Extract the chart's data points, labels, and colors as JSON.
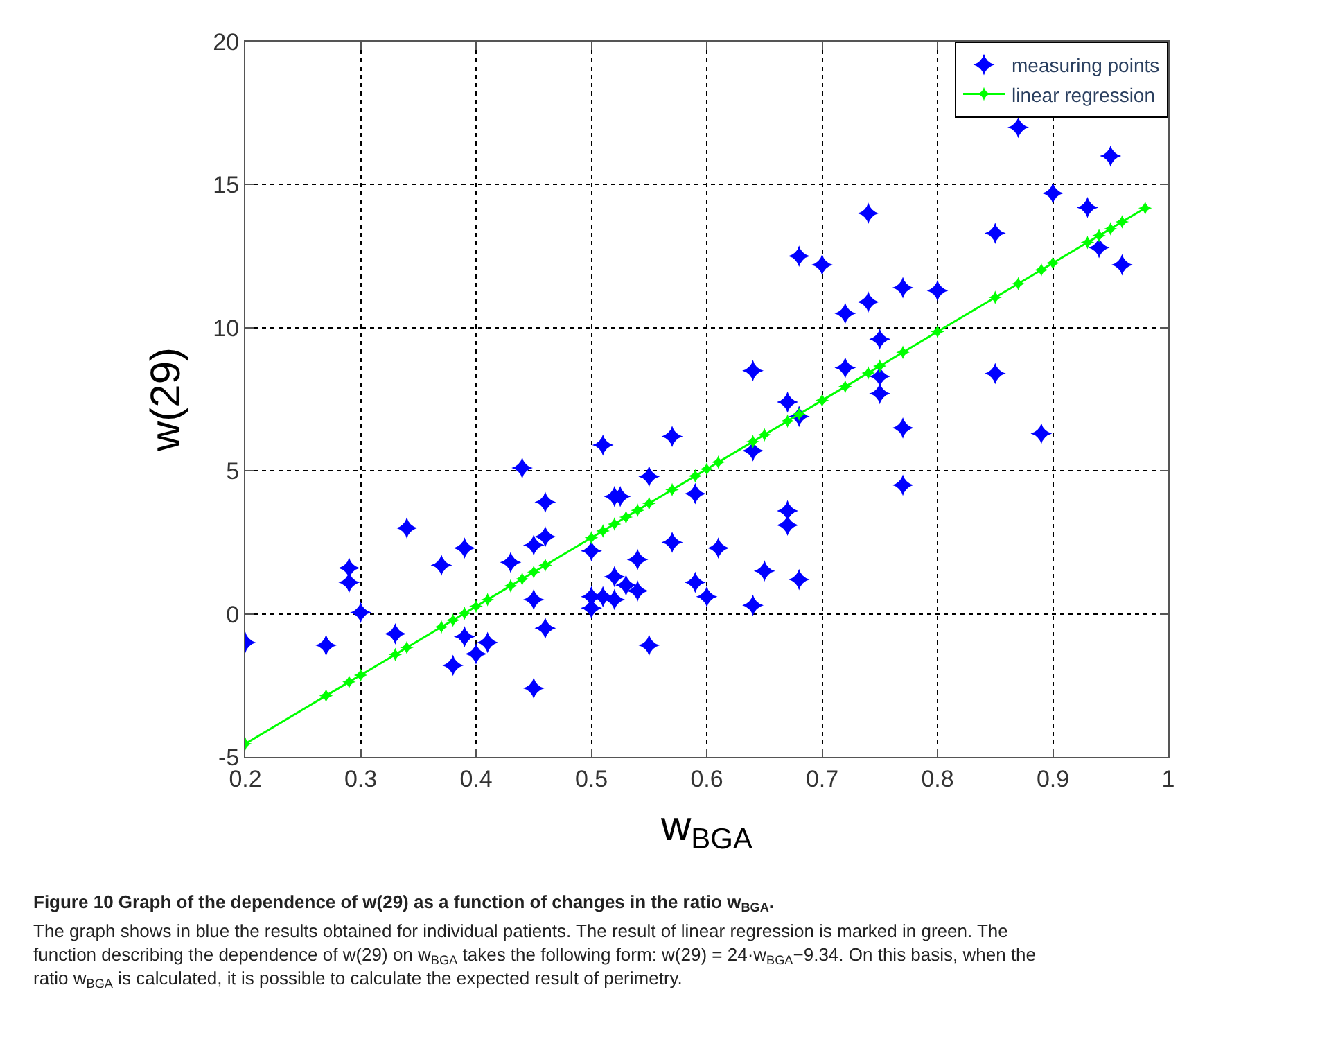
{
  "chart_data": {
    "type": "scatter",
    "xlabel": "w$_{BGA}$",
    "ylabel": "w(29)",
    "xlim": [
      0.2,
      1
    ],
    "xticks": [
      0.2,
      0.3,
      0.4,
      0.5,
      0.6,
      0.7,
      0.8,
      0.9,
      1
    ],
    "ylim": [
      -5,
      20
    ],
    "yticks": [
      -5,
      0,
      5,
      10,
      15,
      20
    ],
    "grid": true,
    "legend": "top right",
    "marker": "star",
    "series": [
      {
        "name": "measuring points",
        "color": "#0000ff",
        "x": [
          0.2,
          0.27,
          0.29,
          0.29,
          0.3,
          0.33,
          0.34,
          0.37,
          0.38,
          0.39,
          0.39,
          0.4,
          0.41,
          0.43,
          0.44,
          0.45,
          0.45,
          0.45,
          0.46,
          0.46,
          0.46,
          0.5,
          0.5,
          0.5,
          0.51,
          0.51,
          0.52,
          0.525,
          0.52,
          0.52,
          0.53,
          0.54,
          0.54,
          0.55,
          0.55,
          0.57,
          0.57,
          0.59,
          0.59,
          0.6,
          0.61,
          0.64,
          0.64,
          0.64,
          0.65,
          0.67,
          0.67,
          0.67,
          0.68,
          0.68,
          0.68,
          0.7,
          0.72,
          0.72,
          0.74,
          0.74,
          0.75,
          0.75,
          0.75,
          0.77,
          0.77,
          0.77,
          0.8,
          0.85,
          0.85,
          0.87,
          0.89,
          0.9,
          0.93,
          0.94,
          0.95,
          0.96
        ],
        "values": [
          -1.0,
          -1.1,
          1.6,
          1.1,
          0.05,
          -0.7,
          3.0,
          1.7,
          -1.8,
          2.3,
          -0.8,
          -1.4,
          -1.0,
          1.8,
          5.1,
          2.4,
          0.5,
          -2.6,
          3.9,
          2.7,
          -0.5,
          2.2,
          0.6,
          0.2,
          5.9,
          0.6,
          4.1,
          4.1,
          0.5,
          1.3,
          1.0,
          0.8,
          1.9,
          4.8,
          -1.1,
          6.2,
          2.5,
          4.2,
          1.1,
          0.6,
          2.3,
          8.5,
          5.7,
          0.3,
          1.5,
          7.4,
          3.6,
          3.1,
          6.9,
          1.2,
          12.5,
          12.2,
          10.5,
          8.6,
          14.0,
          10.9,
          9.6,
          8.3,
          7.7,
          11.4,
          6.5,
          4.5,
          11.3,
          13.3,
          8.4,
          17.0,
          6.3,
          14.7,
          14.2,
          12.8,
          16.0,
          12.2
        ]
      },
      {
        "name": "linear regression",
        "type": "line",
        "color": "#00ff00",
        "line_style": "solid",
        "x": [
          0.2,
          0.27,
          0.29,
          0.3,
          0.33,
          0.34,
          0.37,
          0.38,
          0.39,
          0.4,
          0.41,
          0.43,
          0.44,
          0.45,
          0.46,
          0.5,
          0.51,
          0.52,
          0.53,
          0.54,
          0.55,
          0.57,
          0.59,
          0.6,
          0.61,
          0.64,
          0.65,
          0.67,
          0.68,
          0.7,
          0.72,
          0.74,
          0.75,
          0.77,
          0.8,
          0.85,
          0.87,
          0.89,
          0.9,
          0.93,
          0.94,
          0.95,
          0.96,
          0.98
        ],
        "values": [
          -4.54,
          -2.86,
          -2.38,
          -2.14,
          -1.42,
          -1.18,
          -0.46,
          -0.22,
          0.02,
          0.26,
          0.5,
          0.98,
          1.22,
          1.46,
          1.7,
          2.66,
          2.9,
          3.14,
          3.38,
          3.62,
          3.86,
          4.34,
          4.82,
          5.06,
          5.3,
          6.02,
          6.26,
          6.74,
          6.98,
          7.46,
          7.94,
          8.42,
          8.66,
          9.14,
          9.86,
          11.06,
          11.54,
          12.02,
          12.26,
          12.98,
          13.22,
          13.46,
          13.7,
          14.18
        ]
      }
    ],
    "annotations": [
      "Figure 10 Graph of the dependence of w(29) as a function of changes in the ratio w$_{BGA}$.",
      "The graph shows in blue the results obtained for individual patients. The result of linear regression is marked in green. The function describing the dependence of w(29) on w$_{BGA}$ takes the following form: w(29) = 24·w$_{BGA}$−9.34. On this basis, when the ratio w$_{BGA}$ is calculated, it is possible to calculate the expected result of perimetry."
    ]
  }
}
